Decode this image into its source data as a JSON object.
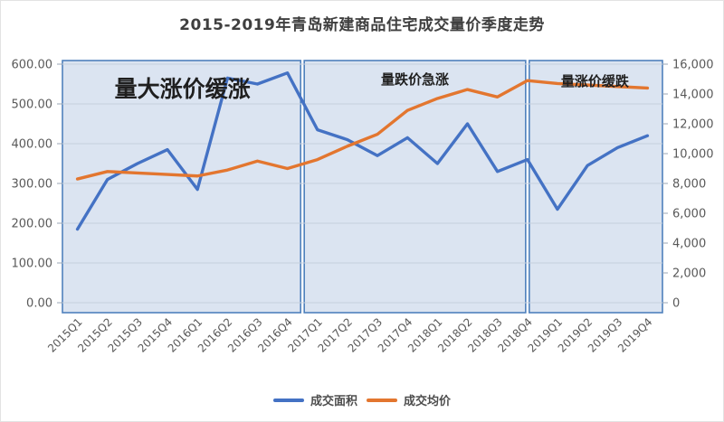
{
  "title": "2015-2019年青岛新建商品住宅成交量价季度走势",
  "colors": {
    "area_series": "#4472c4",
    "price_series": "#e3762f",
    "panel_fill": "#dbe4f1",
    "panel_border": "#4f81bd",
    "grid": "#c6cfdd",
    "axis_text": "#595959",
    "annotation_text": "#1f1f1f"
  },
  "chart_data": {
    "type": "line",
    "categories": [
      "2015Q1",
      "2015Q2",
      "2015Q3",
      "2015Q4",
      "2016Q1",
      "2016Q2",
      "2016Q3",
      "2016Q4",
      "2017Q1",
      "2017Q2",
      "2017Q3",
      "2017Q4",
      "2018Q1",
      "2018Q2",
      "2018Q3",
      "2018Q4",
      "2019Q1",
      "2019Q2",
      "2019Q3",
      "2019Q4"
    ],
    "series": [
      {
        "name": "成交面积",
        "axis": "left",
        "color": "#4472c4",
        "values": [
          185,
          310,
          350,
          385,
          285,
          565,
          550,
          578,
          435,
          410,
          370,
          415,
          350,
          450,
          330,
          360,
          235,
          345,
          390,
          420
        ]
      },
      {
        "name": "成交均价",
        "axis": "right",
        "color": "#e3762f",
        "values": [
          8300,
          8800,
          8700,
          8600,
          8500,
          8900,
          9500,
          9000,
          9600,
          10500,
          11300,
          12900,
          13700,
          14300,
          13800,
          14900,
          14700,
          14600,
          14500,
          14400
        ]
      }
    ],
    "left_axis": {
      "min": 0,
      "max": 600,
      "tick_values": [
        0,
        100,
        200,
        300,
        400,
        500,
        600
      ],
      "tick_labels": [
        "0.00",
        "100.00",
        "200.00",
        "300.00",
        "400.00",
        "500.00",
        "600.00"
      ]
    },
    "right_axis": {
      "min": 0,
      "max": 16000,
      "tick_values": [
        0,
        2000,
        4000,
        6000,
        8000,
        10000,
        12000,
        14000,
        16000
      ],
      "tick_labels": [
        "0",
        "2,000",
        "4,000",
        "6,000",
        "8,000",
        "10,000",
        "12,000",
        "14,000",
        "16,000"
      ]
    },
    "annotations": [
      {
        "label": "量大涨价缓涨",
        "from_u": 0,
        "to_u": 8
      },
      {
        "label": "量跌价急涨",
        "from_u": 8,
        "to_u": 15.5
      },
      {
        "label": "量涨价缓跌",
        "from_u": 15.5,
        "to_u": 20
      }
    ],
    "grid": true,
    "legend_position": "bottom"
  }
}
